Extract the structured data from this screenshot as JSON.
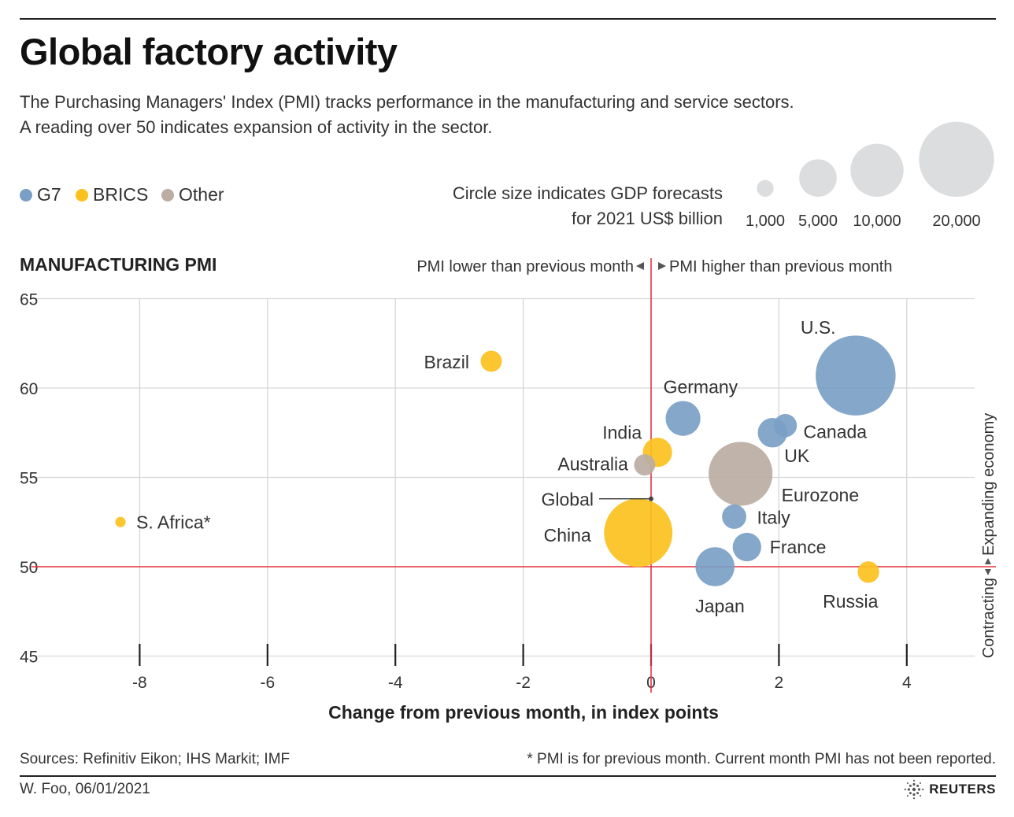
{
  "header": {
    "title": "Global factory activity",
    "subtitle_line1": "The Purchasing Managers' Index (PMI) tracks performance in the manufacturing and service sectors.",
    "subtitle_line2": "A reading over 50 indicates expansion of activity in the sector."
  },
  "legend": {
    "groups": [
      {
        "label": "G7",
        "color": "#7a9fc6"
      },
      {
        "label": "BRICS",
        "color": "#fbc11d"
      },
      {
        "label": "Other",
        "color": "#bbada3"
      }
    ],
    "size_note_line1": "Circle size indicates GDP forecasts",
    "size_note_line2": "for 2021 US$ billion",
    "size_values": [
      1000,
      5000,
      10000,
      20000
    ],
    "size_labels": [
      "1,000",
      "5,000",
      "10,000",
      "20,000"
    ],
    "size_color": "#dcddde"
  },
  "chart_data": {
    "type": "scatter",
    "title": "MANUFACTURING PMI",
    "xlabel": "Change from previous month, in index points",
    "ylabel": "",
    "xlim": [
      -9.2,
      5.2
    ],
    "ylim": [
      45,
      65
    ],
    "xticks": [
      -8,
      -6,
      -4,
      -2,
      0,
      2,
      4
    ],
    "xtick_labels": [
      "-8",
      "-6",
      "-4",
      "-2",
      "0",
      "2",
      "4"
    ],
    "yticks": [
      45,
      50,
      55,
      60,
      65
    ],
    "ytick_labels": [
      "45",
      "50",
      "55",
      "60",
      "65"
    ],
    "grid": true,
    "reference_lines": {
      "x": 0,
      "y": 50,
      "color": "#e8333f"
    },
    "annotation_left": "PMI lower than previous month",
    "annotation_right": "PMI higher than previous month",
    "axis_note_expanding": "Expanding economy",
    "axis_note_contracting": "Contracting",
    "points": [
      {
        "name": "U.S.",
        "group": "G7",
        "x": 3.2,
        "y": 60.7,
        "gdp": 22700
      },
      {
        "name": "Brazil",
        "group": "BRICS",
        "x": -2.5,
        "y": 61.5,
        "gdp": 1600
      },
      {
        "name": "Germany",
        "group": "G7",
        "x": 0.5,
        "y": 58.3,
        "gdp": 4300
      },
      {
        "name": "Canada",
        "group": "G7",
        "x": 2.1,
        "y": 57.9,
        "gdp": 1900
      },
      {
        "name": "UK",
        "group": "G7",
        "x": 1.9,
        "y": 57.5,
        "gdp": 3100
      },
      {
        "name": "India",
        "group": "BRICS",
        "x": 0.1,
        "y": 56.4,
        "gdp": 3050
      },
      {
        "name": "Australia",
        "group": "Other",
        "x": -0.1,
        "y": 55.7,
        "gdp": 1600
      },
      {
        "name": "Eurozone",
        "group": "Other",
        "x": 1.4,
        "y": 55.2,
        "gdp": 14500
      },
      {
        "name": "Global",
        "group": "Other",
        "x": 0.0,
        "y": 53.8,
        "gdp": 0
      },
      {
        "name": "Italy",
        "group": "G7",
        "x": 1.3,
        "y": 52.8,
        "gdp": 2100
      },
      {
        "name": "S. Africa*",
        "group": "BRICS",
        "x": -8.3,
        "y": 52.5,
        "gdp": 380
      },
      {
        "name": "China",
        "group": "BRICS",
        "x": -0.2,
        "y": 51.9,
        "gdp": 16600
      },
      {
        "name": "France",
        "group": "G7",
        "x": 1.5,
        "y": 51.1,
        "gdp": 2900
      },
      {
        "name": "Japan",
        "group": "G7",
        "x": 1.0,
        "y": 50.0,
        "gdp": 5400
      },
      {
        "name": "Russia",
        "group": "BRICS",
        "x": 3.4,
        "y": 49.7,
        "gdp": 1650
      }
    ]
  },
  "footer": {
    "sources": "Sources: Refinitiv Eikon; IHS Markit; IMF",
    "footnote": "* PMI is for previous month. Current month PMI has not been reported.",
    "byline": "W. Foo, 06/01/2021",
    "brand": "REUTERS"
  }
}
